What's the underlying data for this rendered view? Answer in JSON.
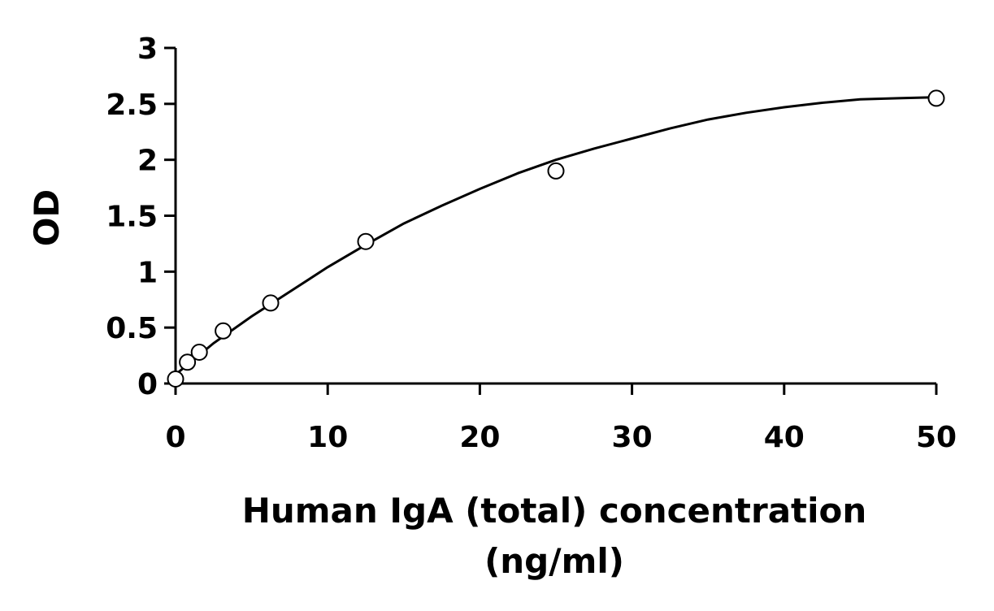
{
  "chart_data": {
    "type": "scatter",
    "title": "",
    "xlabel_line1": "Human IgA (total) concentration",
    "xlabel_line2": "(ng/ml)",
    "ylabel": "OD",
    "xlim": [
      0,
      50
    ],
    "ylim": [
      0,
      3
    ],
    "xticks": [
      0,
      10,
      20,
      30,
      40,
      50
    ],
    "yticks": [
      0,
      0.5,
      1,
      1.5,
      2,
      2.5,
      3
    ],
    "grid": false,
    "legend": "none",
    "series": [
      {
        "kind": "points",
        "marker": "open-circle",
        "x": [
          0,
          0.78,
          1.56,
          3.13,
          6.25,
          12.5,
          25,
          50
        ],
        "y": [
          0.04,
          0.19,
          0.28,
          0.47,
          0.72,
          1.27,
          1.9,
          2.55
        ]
      },
      {
        "kind": "fit-curve",
        "x": [
          0,
          2.5,
          5,
          7.5,
          10,
          12.5,
          15,
          17.5,
          20,
          22.5,
          25,
          27.5,
          30,
          32.5,
          35,
          37.5,
          40,
          42.5,
          45,
          47.5,
          50
        ],
        "y": [
          0.08,
          0.36,
          0.6,
          0.82,
          1.04,
          1.24,
          1.43,
          1.59,
          1.74,
          1.88,
          2.0,
          2.1,
          2.19,
          2.28,
          2.36,
          2.42,
          2.47,
          2.51,
          2.54,
          2.55,
          2.56
        ]
      }
    ]
  }
}
